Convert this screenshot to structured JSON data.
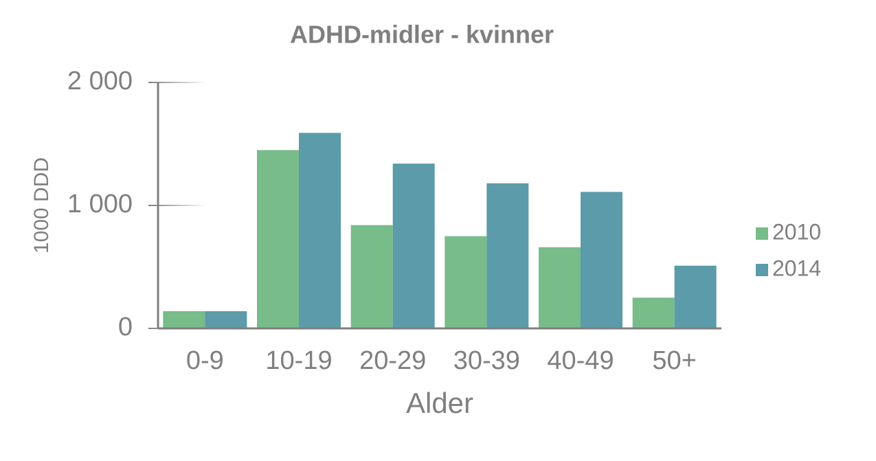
{
  "chart_data": {
    "type": "bar",
    "title": "ADHD-midler - kvinner",
    "x_label": "Alder",
    "y_label": "1000 DDD",
    "categories": [
      "0-9",
      "10-19",
      "20-29",
      "30-39",
      "40-49",
      "50+"
    ],
    "series": [
      {
        "name": "2010",
        "color": "#77bc89",
        "values": [
          140,
          1450,
          840,
          750,
          660,
          250
        ]
      },
      {
        "name": "2014",
        "color": "#5b9baa",
        "values": [
          140,
          1590,
          1340,
          1180,
          1110,
          510
        ]
      }
    ],
    "ylim": [
      0,
      2000
    ],
    "yticks": [
      0,
      {
        "value": 1000,
        "label": "1 000"
      },
      {
        "value": 2000,
        "label": "2 000"
      }
    ],
    "legend": "right"
  }
}
